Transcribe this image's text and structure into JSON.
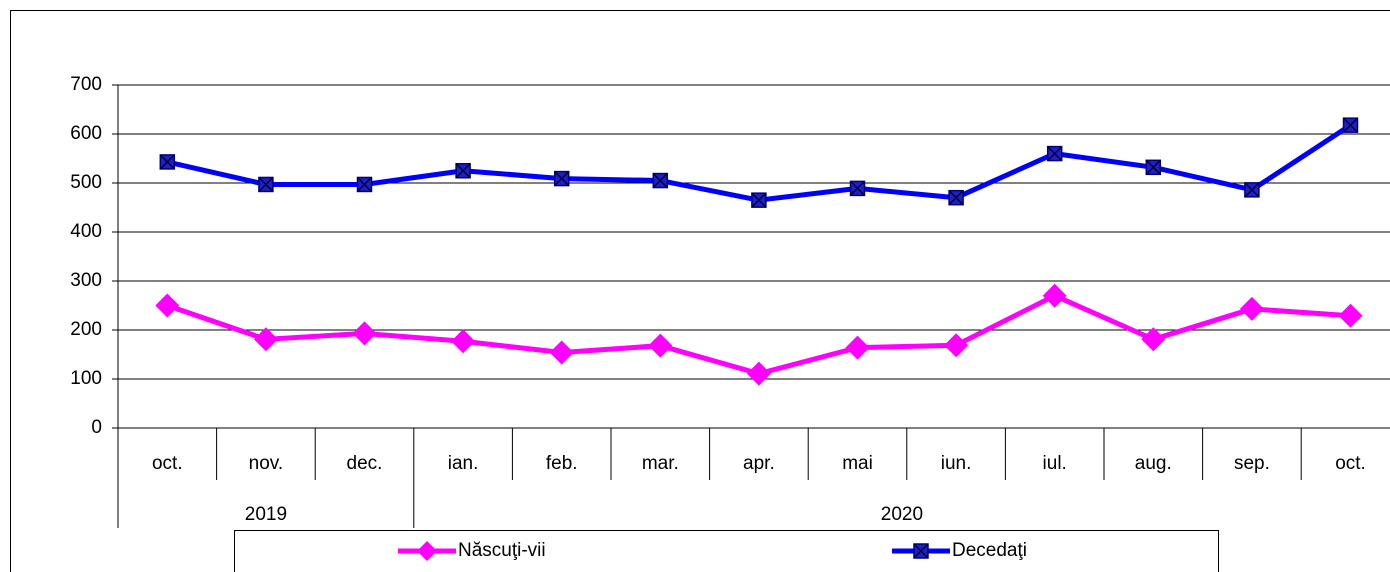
{
  "chart_data": {
    "type": "line",
    "categories": [
      "oct.",
      "nov.",
      "dec.",
      "ian.",
      "feb.",
      "mar.",
      "apr.",
      "mai",
      "iun.",
      "iul.",
      "aug.",
      "sep.",
      "oct."
    ],
    "groups": [
      {
        "label": "2019",
        "span": 3
      },
      {
        "label": "2020",
        "span": 10
      }
    ],
    "series": [
      {
        "name": "Născuţi-vii",
        "color": "#ff00ff",
        "marker": "diamond",
        "values": [
          250,
          181,
          193,
          177,
          154,
          168,
          111,
          164,
          169,
          270,
          181,
          243,
          229
        ]
      },
      {
        "name": "Decedaţi",
        "color": "#0000ff",
        "marker": "square",
        "values": [
          543,
          497,
          497,
          525,
          509,
          505,
          465,
          489,
          470,
          560,
          532,
          486,
          618
        ]
      }
    ],
    "ylim": [
      0,
      700
    ],
    "yticks": [
      0,
      100,
      200,
      300,
      400,
      500,
      600,
      700
    ],
    "grid": true,
    "legend": "bottom"
  }
}
